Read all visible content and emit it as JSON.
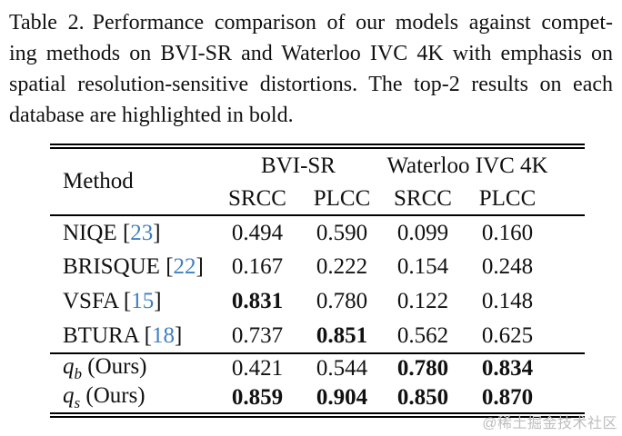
{
  "caption": {
    "label": "Table 2.",
    "lines": [
      "Performance comparison of our models against compet-",
      "ing methods on BVI-SR and Waterloo IVC 4K with emphasis on",
      "spatial resolution-sensitive distortions. The top-2 results on each",
      "database are highlighted in bold."
    ]
  },
  "table": {
    "method_header": "Method",
    "groups": [
      {
        "label": "BVI-SR",
        "subcols": [
          "SRCC",
          "PLCC"
        ]
      },
      {
        "label": "Waterloo IVC 4K",
        "subcols": [
          "SRCC",
          "PLCC"
        ]
      }
    ],
    "cite_open": "[",
    "cite_close": "]",
    "sections": [
      {
        "rows": [
          {
            "method": {
              "base": "NIQE",
              "cite": "23"
            },
            "values": [
              {
                "text": "0.494",
                "bold": false
              },
              {
                "text": "0.590",
                "bold": false
              },
              {
                "text": "0.099",
                "bold": false
              },
              {
                "text": "0.160",
                "bold": false
              }
            ]
          },
          {
            "method": {
              "base": "BRISQUE",
              "cite": "22"
            },
            "values": [
              {
                "text": "0.167",
                "bold": false
              },
              {
                "text": "0.222",
                "bold": false
              },
              {
                "text": "0.154",
                "bold": false
              },
              {
                "text": "0.248",
                "bold": false
              }
            ]
          },
          {
            "method": {
              "base": "VSFA",
              "cite": "15"
            },
            "values": [
              {
                "text": "0.831",
                "bold": true
              },
              {
                "text": "0.780",
                "bold": false
              },
              {
                "text": "0.122",
                "bold": false
              },
              {
                "text": "0.148",
                "bold": false
              }
            ]
          },
          {
            "method": {
              "base": "BTURA",
              "cite": "18"
            },
            "values": [
              {
                "text": "0.737",
                "bold": false
              },
              {
                "text": "0.851",
                "bold": true
              },
              {
                "text": "0.562",
                "bold": false
              },
              {
                "text": "0.625",
                "bold": false
              }
            ]
          }
        ]
      },
      {
        "rows": [
          {
            "method": {
              "base": "q",
              "sub": "b",
              "rest": " (Ours)"
            },
            "values": [
              {
                "text": "0.421",
                "bold": false
              },
              {
                "text": "0.544",
                "bold": false
              },
              {
                "text": "0.780",
                "bold": true
              },
              {
                "text": "0.834",
                "bold": true
              }
            ]
          },
          {
            "method": {
              "base": "q",
              "sub": "s",
              "rest": " (Ours)"
            },
            "values": [
              {
                "text": "0.859",
                "bold": true
              },
              {
                "text": "0.904",
                "bold": true
              },
              {
                "text": "0.850",
                "bold": true
              },
              {
                "text": "0.870",
                "bold": true
              }
            ]
          }
        ]
      }
    ]
  },
  "watermark": "@稀土掘金技术社区",
  "colors": {
    "text": "#111111",
    "citation_blue": "#3f7fc1",
    "watermark_gray": "#bdbdbd",
    "rule_black": "#000000",
    "background": "#ffffff"
  }
}
